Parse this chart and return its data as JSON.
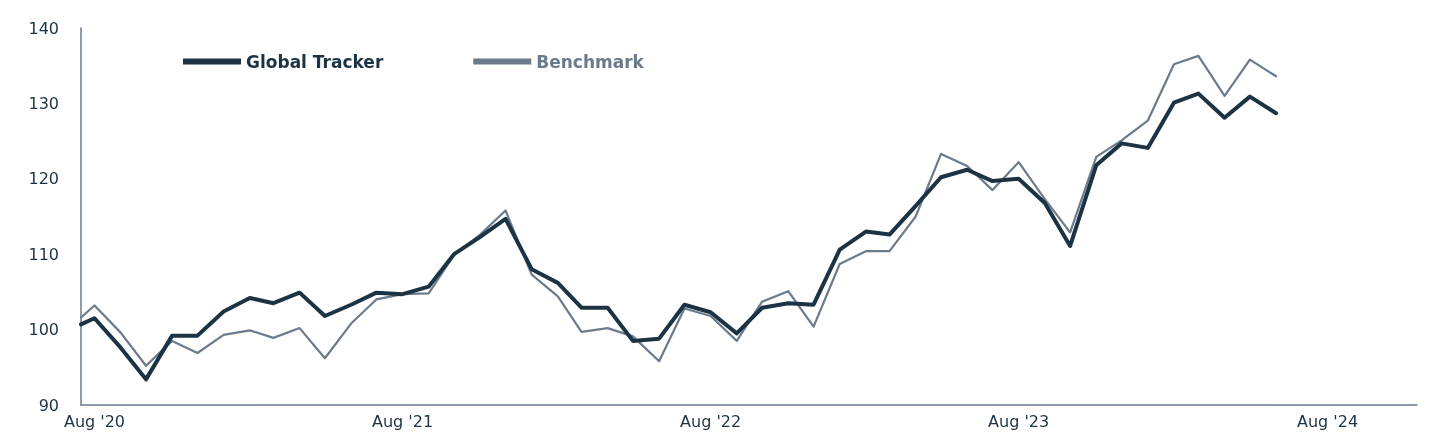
{
  "chart_data": {
    "type": "line",
    "x": [
      "2020-07-16",
      "2020-08",
      "2020-09",
      "2020-10",
      "2020-11",
      "2020-12",
      "2021-01",
      "2021-02",
      "2021-03",
      "2021-04",
      "2021-05",
      "2021-06",
      "2021-07",
      "2021-08",
      "2021-09",
      "2021-10",
      "2021-11",
      "2021-12",
      "2022-01",
      "2022-02",
      "2022-03",
      "2022-04",
      "2022-05",
      "2022-06",
      "2022-07",
      "2022-08",
      "2022-09",
      "2022-10",
      "2022-11",
      "2022-12",
      "2023-01",
      "2023-02",
      "2023-03",
      "2023-04",
      "2023-05",
      "2023-06",
      "2023-07",
      "2023-08",
      "2023-09",
      "2023-10",
      "2023-11",
      "2023-12",
      "2024-01",
      "2024-02",
      "2024-03",
      "2024-04",
      "2024-05",
      "2024-06"
    ],
    "series": [
      {
        "name": "Global Tracker",
        "color": "#1c3344",
        "values": [
          100.7,
          101.5,
          97.6,
          93.4,
          99.2,
          99.2,
          102.4,
          104.2,
          103.5,
          104.9,
          101.8,
          103.3,
          104.9,
          104.7,
          105.7,
          110.0,
          112.3,
          114.7,
          108.0,
          106.2,
          102.9,
          102.9,
          98.5,
          98.8,
          103.3,
          102.3,
          99.5,
          102.9,
          103.5,
          103.3,
          110.6,
          113.0,
          112.6,
          116.4,
          120.2,
          121.2,
          119.7,
          120.0,
          116.8,
          111.1,
          121.8,
          124.7,
          124.1,
          130.1,
          131.3,
          128.1,
          130.9,
          128.7
        ]
      },
      {
        "name": "Benchmark",
        "color": "#6b7b8c",
        "values": [
          101.6,
          103.2,
          99.6,
          95.2,
          98.5,
          96.9,
          99.3,
          99.9,
          98.9,
          100.2,
          96.2,
          100.8,
          104.0,
          104.7,
          104.8,
          109.9,
          112.6,
          115.8,
          107.3,
          104.4,
          99.7,
          100.2,
          99.1,
          95.8,
          102.8,
          101.8,
          98.5,
          103.7,
          105.1,
          100.4,
          108.7,
          110.4,
          110.4,
          115.0,
          123.3,
          121.7,
          118.5,
          122.2,
          117.3,
          112.9,
          122.9,
          125.1,
          127.7,
          135.2,
          136.3,
          131.0,
          135.8,
          133.6
        ]
      }
    ],
    "xlim": [
      "2020-07-16",
      "2024-11-15"
    ],
    "xticks": [
      {
        "value": "2020-08",
        "label": "Aug '20"
      },
      {
        "value": "2021-08",
        "label": "Aug '21"
      },
      {
        "value": "2022-08",
        "label": "Aug '22"
      },
      {
        "value": "2023-08",
        "label": "Aug '23"
      },
      {
        "value": "2024-08",
        "label": "Aug '24"
      }
    ],
    "ylim": [
      90,
      140
    ],
    "yticks": [
      90,
      100,
      110,
      120,
      130,
      140
    ],
    "grid": false,
    "legend": "top left",
    "marker": "none",
    "line_style": "solid"
  }
}
